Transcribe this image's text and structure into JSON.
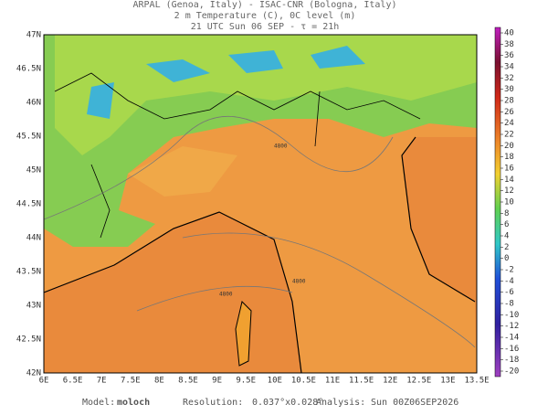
{
  "header": {
    "lines": [
      "ARPAL (Genoa, Italy)  -  ISAC-CNR (Bologna, Italy)",
      "2 m Temperature (C), 0C level (m)",
      "21 UTC Sun 06 SEP  -  τ = 21h"
    ]
  },
  "map": {
    "lat_labels": [
      "47N",
      "46.5N",
      "46N",
      "45.5N",
      "45N",
      "44.5N",
      "44N",
      "43.5N",
      "43N",
      "42.5N",
      "42N"
    ],
    "lon_labels": [
      "6E",
      "6.5E",
      "7E",
      "7.5E",
      "8E",
      "8.5E",
      "9E",
      "9.5E",
      "10E",
      "10.5E",
      "11E",
      "11.5E",
      "12E",
      "12.5E",
      "13E",
      "13.5E"
    ],
    "contour_labels": [
      "4800",
      "4800",
      "4800"
    ]
  },
  "colorbar": {
    "labels": [
      40,
      38,
      36,
      34,
      32,
      30,
      28,
      26,
      24,
      22,
      20,
      18,
      16,
      14,
      12,
      10,
      8,
      6,
      4,
      2,
      0,
      -2,
      -4,
      -6,
      -8,
      -10,
      -12,
      -14,
      -16,
      -18,
      -20
    ]
  },
  "footer": {
    "model_label": "Model:",
    "model": "moloch",
    "resolution_label": "Resolution:",
    "resolution": "0.037°x0.028°",
    "analysis_label": "Analysis:",
    "analysis": "Sun 00Z06SEP2026"
  }
}
